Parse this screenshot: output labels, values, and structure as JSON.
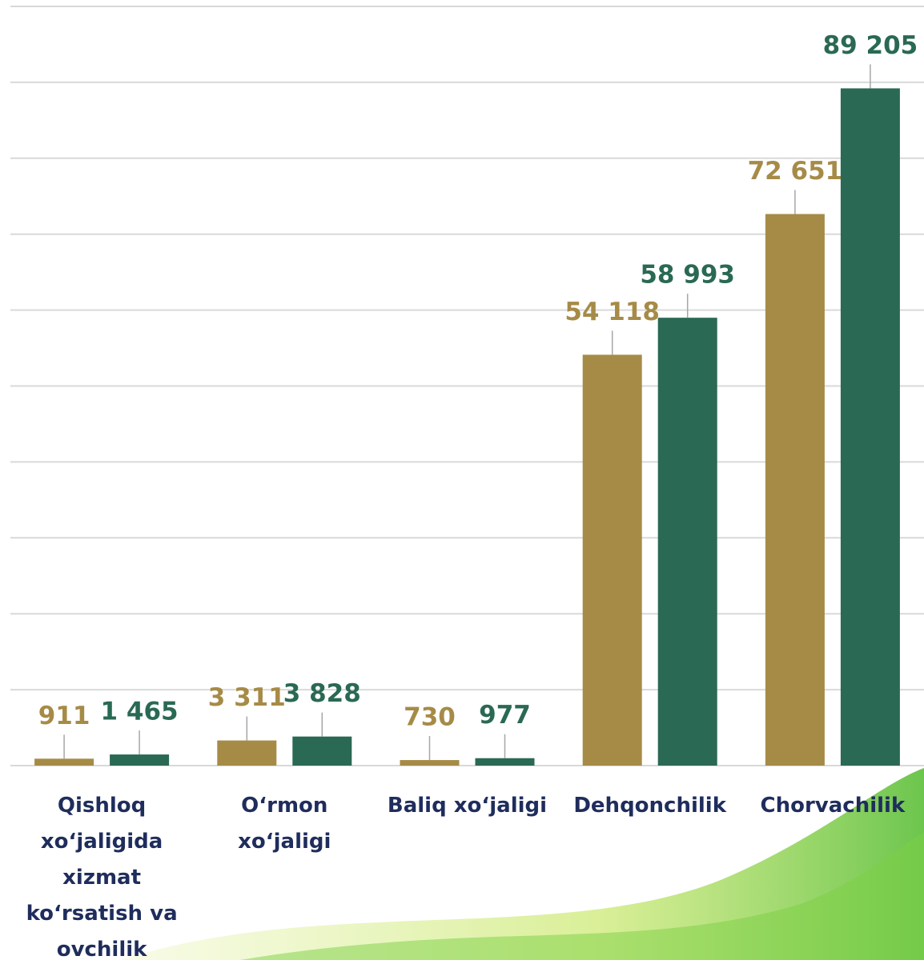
{
  "chart_data": {
    "type": "bar",
    "categories": [
      "Qishloq xo‘jaligida xizmat ko‘rsatish va ovchilik",
      "O‘rmon xo‘jaligi",
      "Baliq xo‘jaligi",
      "Dehqonchilik",
      "Chorvachilik"
    ],
    "series": [
      {
        "color": "#a68b47",
        "values": [
          911,
          3311,
          730,
          54118,
          72651
        ],
        "value_labels": [
          "911",
          "3 311",
          "730",
          "54 118",
          "72 651"
        ]
      },
      {
        "color": "#2a6953",
        "values": [
          1465,
          3828,
          977,
          58993,
          89205
        ],
        "value_labels": [
          "1 465",
          "3 828",
          "977",
          "58 993",
          "89 205"
        ]
      }
    ],
    "ylim": [
      0,
      100000
    ],
    "yticks": [
      0,
      10000,
      20000,
      30000,
      40000,
      50000,
      60000,
      70000,
      80000,
      90000,
      100000
    ],
    "grid": true
  }
}
